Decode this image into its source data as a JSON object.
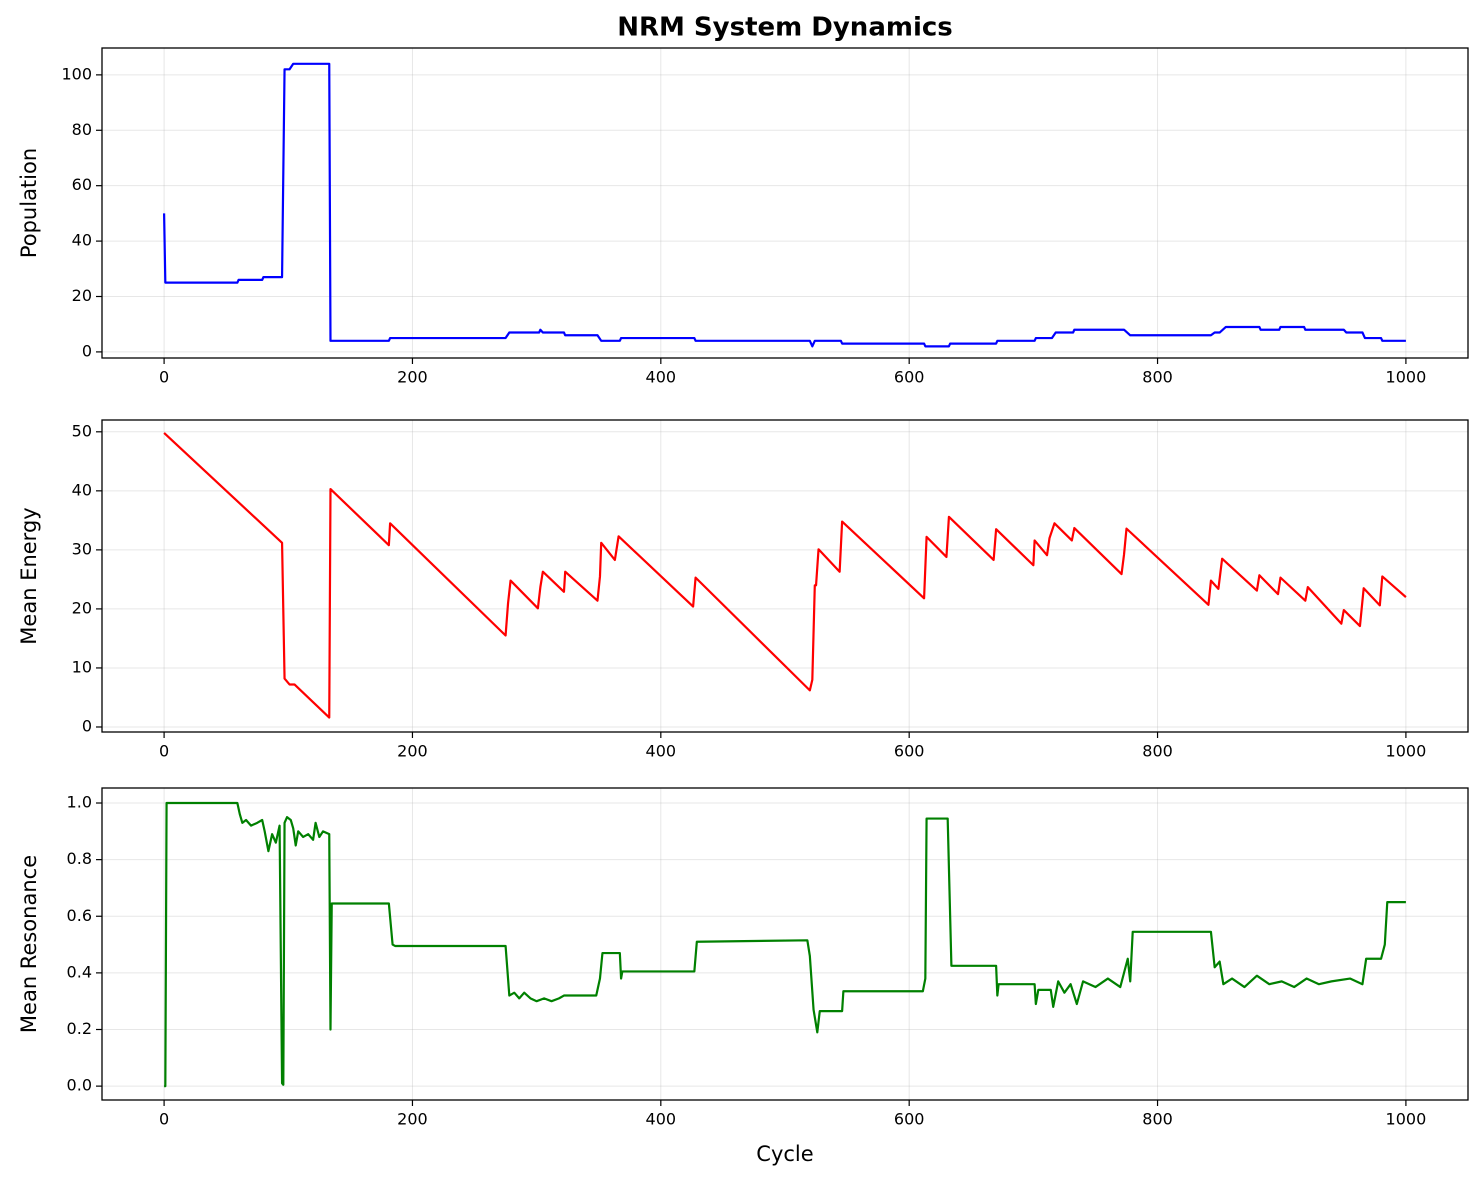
{
  "chart_data": [
    {
      "type": "line",
      "title": "NRM System Dynamics",
      "ylabel": "Population",
      "color": "#0000ff",
      "grid": true,
      "xlim": [
        -50,
        1050
      ],
      "xticks": [
        0,
        200,
        400,
        600,
        800,
        1000
      ],
      "ylim": [
        -2.2,
        109.7
      ],
      "yticks": [
        0,
        20,
        40,
        60,
        80,
        100
      ],
      "x": [
        0,
        1,
        59,
        60,
        79,
        80,
        95,
        97,
        101,
        104,
        133,
        134,
        181,
        182,
        275,
        278,
        302,
        303,
        305,
        322,
        323,
        349,
        352,
        367,
        368,
        427,
        428,
        520,
        522,
        524,
        526,
        545,
        546,
        612,
        613,
        632,
        633,
        670,
        671,
        701,
        702,
        715,
        718,
        732,
        733,
        773,
        778,
        843,
        846,
        850,
        855,
        882,
        883,
        898,
        899,
        918,
        919,
        950,
        952,
        965,
        967,
        980,
        981,
        1000
      ],
      "values": [
        50,
        25,
        25,
        26,
        26,
        27,
        27,
        102,
        102,
        104,
        104,
        4,
        4,
        5,
        5,
        7,
        7,
        8,
        7,
        7,
        6,
        6,
        4,
        4,
        5,
        5,
        4,
        4,
        2,
        4,
        4,
        4,
        3,
        3,
        2,
        2,
        3,
        3,
        4,
        4,
        5,
        5,
        7,
        7,
        8,
        8,
        6,
        6,
        7,
        7,
        9,
        9,
        8,
        8,
        9,
        9,
        8,
        8,
        7,
        7,
        5,
        5,
        4,
        4
      ]
    },
    {
      "type": "line",
      "ylabel": "Mean Energy",
      "color": "#ff0000",
      "grid": true,
      "xlim": [
        -50,
        1050
      ],
      "xticks": [
        0,
        200,
        400,
        600,
        800,
        1000
      ],
      "ylim": [
        -0.85,
        52
      ],
      "yticks": [
        0,
        10,
        20,
        30,
        40,
        50
      ],
      "x": [
        0,
        95,
        97,
        101,
        105,
        133,
        134,
        181,
        182,
        275,
        277,
        279,
        301,
        303,
        305,
        322,
        323,
        349,
        351,
        352,
        363,
        366,
        426,
        428,
        520,
        522,
        524,
        525,
        527,
        544,
        546,
        612,
        614,
        630,
        632,
        668,
        670,
        700,
        701,
        711,
        713,
        717,
        731,
        733,
        771,
        773,
        775,
        841,
        843,
        849,
        852,
        880,
        882,
        897,
        899,
        919,
        921,
        948,
        950,
        963,
        966,
        979,
        981,
        1000
      ],
      "values": [
        49.8,
        31.2,
        8.2,
        7.2,
        7.2,
        1.6,
        40.3,
        30.8,
        34.5,
        15.5,
        21,
        24.8,
        20.1,
        23.7,
        26.3,
        22.9,
        26.3,
        21.4,
        25.5,
        31.2,
        28.3,
        32.3,
        20.4,
        25.3,
        6.2,
        8,
        24,
        24,
        30.1,
        26.3,
        34.8,
        21.8,
        32.2,
        28.8,
        35.6,
        28.3,
        33.5,
        27.4,
        31.6,
        29.1,
        32,
        34.5,
        31.6,
        33.7,
        25.9,
        29.2,
        33.6,
        20.7,
        24.8,
        23.4,
        28.5,
        23.1,
        25.7,
        22.5,
        25.3,
        21.4,
        23.7,
        17.5,
        19.8,
        17.1,
        23.5,
        20.6,
        25.5,
        22
      ]
    },
    {
      "type": "line",
      "ylabel": "Mean Resonance",
      "xlabel": "Cycle",
      "color": "#008000",
      "grid": true,
      "xlim": [
        -50,
        1050
      ],
      "xticks": [
        0,
        200,
        400,
        600,
        800,
        1000
      ],
      "ylim": [
        -0.049,
        1.053
      ],
      "yticks": [
        {
          "value": 0,
          "label": "0.0"
        },
        0.2,
        0.4,
        0.6,
        0.8,
        {
          "value": 1,
          "label": "1.0"
        }
      ],
      "x": [
        0,
        1,
        2,
        59,
        61,
        63,
        66,
        70,
        75,
        79,
        81,
        84,
        87,
        90,
        93,
        95,
        96,
        97,
        99,
        102,
        104,
        106,
        108,
        112,
        116,
        120,
        122,
        125,
        128,
        133,
        134,
        135,
        181,
        184,
        186,
        275,
        278,
        282,
        286,
        290,
        295,
        300,
        306,
        312,
        318,
        322,
        325,
        348,
        351,
        353,
        367,
        368,
        369,
        427,
        429,
        518,
        520,
        523,
        526,
        528,
        546,
        547,
        611,
        613,
        614,
        631,
        634,
        670,
        671,
        672,
        701,
        702,
        704,
        714,
        716,
        720,
        725,
        730,
        735,
        740,
        750,
        760,
        770,
        776,
        778,
        780,
        843,
        846,
        850,
        853,
        860,
        870,
        880,
        890,
        900,
        910,
        920,
        930,
        940,
        955,
        965,
        968,
        980,
        983,
        985,
        1000
      ],
      "values": [
        0,
        0,
        1.0,
        1.0,
        0.96,
        0.93,
        0.94,
        0.92,
        0.93,
        0.94,
        0.9,
        0.83,
        0.89,
        0.86,
        0.92,
        0.01,
        0.005,
        0.93,
        0.95,
        0.94,
        0.91,
        0.85,
        0.9,
        0.88,
        0.89,
        0.87,
        0.93,
        0.88,
        0.9,
        0.89,
        0.2,
        0.645,
        0.645,
        0.5,
        0.495,
        0.495,
        0.32,
        0.33,
        0.31,
        0.33,
        0.31,
        0.3,
        0.31,
        0.3,
        0.31,
        0.32,
        0.32,
        0.32,
        0.38,
        0.47,
        0.47,
        0.38,
        0.405,
        0.405,
        0.51,
        0.515,
        0.46,
        0.27,
        0.19,
        0.265,
        0.265,
        0.335,
        0.335,
        0.38,
        0.945,
        0.945,
        0.425,
        0.425,
        0.32,
        0.36,
        0.36,
        0.29,
        0.34,
        0.34,
        0.28,
        0.37,
        0.33,
        0.36,
        0.29,
        0.37,
        0.35,
        0.38,
        0.35,
        0.45,
        0.37,
        0.545,
        0.545,
        0.42,
        0.44,
        0.36,
        0.38,
        0.35,
        0.39,
        0.36,
        0.37,
        0.35,
        0.38,
        0.36,
        0.37,
        0.38,
        0.36,
        0.45,
        0.45,
        0.5,
        0.65,
        0.65
      ]
    }
  ]
}
